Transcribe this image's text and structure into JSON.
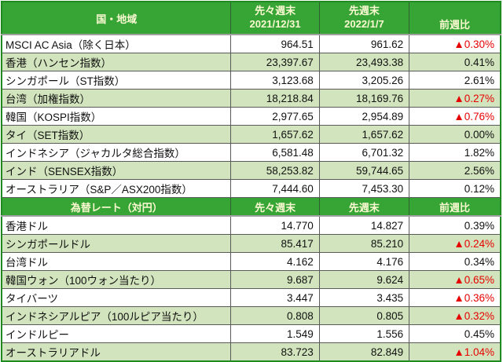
{
  "colors": {
    "header_bg": "#36a536",
    "header_text": "#fcf9d2",
    "band_bg": "#d2e4bd",
    "row_bg": "#ffffff",
    "negative": "#e60000",
    "text": "#111111",
    "outer_border": "#1f8a1f",
    "inner_border": "#5a5a5a",
    "header_divider": "#a0a0a0"
  },
  "negative_marker": "▲",
  "chart_data": [
    {
      "type": "table",
      "title": "国・地域",
      "columns": [
        "国・地域",
        "先々週末\n2021/12/31",
        "先週末\n2022/1/7",
        "前週比"
      ],
      "rows": [
        [
          "MSCI AC Asia（除く日本）",
          "964.51",
          "961.62",
          "▲0.30%"
        ],
        [
          "香港（ハンセン指数）",
          "23,397.67",
          "23,493.38",
          "0.41%"
        ],
        [
          "シンガポール（ST指数）",
          "3,123.68",
          "3,205.26",
          "2.61%"
        ],
        [
          "台湾（加権指数）",
          "18,218.84",
          "18,169.76",
          "▲0.27%"
        ],
        [
          "韓国（KOSPI指数）",
          "2,977.65",
          "2,954.89",
          "▲0.76%"
        ],
        [
          "タイ（SET指数）",
          "1,657.62",
          "1,657.62",
          "0.00%"
        ],
        [
          "インドネシア（ジャカルタ総合指数）",
          "6,581.48",
          "6,701.32",
          "1.82%"
        ],
        [
          "インド（SENSEX指数）",
          "58,253.82",
          "59,744.65",
          "2.56%"
        ],
        [
          "オーストラリア（S&P／ASX200指数）",
          "7,444.60",
          "7,453.30",
          "0.12%"
        ]
      ]
    },
    {
      "type": "table",
      "title": "為替レート（対円）",
      "columns": [
        "為替レート（対円）",
        "先々週末",
        "先週末",
        "前週比"
      ],
      "rows": [
        [
          "香港ドル",
          "14.770",
          "14.827",
          "0.39%"
        ],
        [
          "シンガポールドル",
          "85.417",
          "85.210",
          "▲0.24%"
        ],
        [
          "台湾ドル",
          "4.162",
          "4.176",
          "0.34%"
        ],
        [
          "韓国ウォン（100ウォン当たり）",
          "9.687",
          "9.624",
          "▲0.65%"
        ],
        [
          "タイバーツ",
          "3.447",
          "3.435",
          "▲0.36%"
        ],
        [
          "インドネシアルピア（100ルピア当たり）",
          "0.808",
          "0.805",
          "▲0.32%"
        ],
        [
          "インドルピー",
          "1.549",
          "1.556",
          "0.45%"
        ],
        [
          "オーストラリアドル",
          "83.723",
          "82.849",
          "▲1.04%"
        ]
      ]
    }
  ]
}
